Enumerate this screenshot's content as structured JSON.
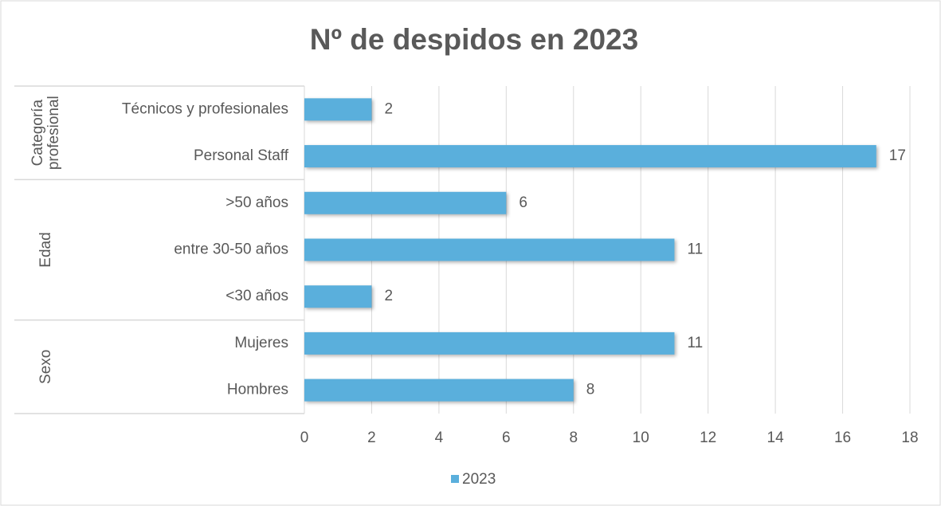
{
  "chart_data": {
    "type": "bar",
    "orientation": "horizontal",
    "title": "Nº de despidos en 2023",
    "series_name": "2023",
    "color": "#5aafdc",
    "groups": [
      {
        "name": "Categoría profesional",
        "categories": [
          "Técnicos y profesionales",
          "Personal Staff"
        ],
        "values": [
          2,
          17
        ]
      },
      {
        "name": "Edad",
        "categories": [
          ">50 años",
          "entre 30-50 años",
          "<30 años"
        ],
        "values": [
          6,
          11,
          2
        ]
      },
      {
        "name": "Sexo",
        "categories": [
          "Mujeres",
          "Hombres"
        ],
        "values": [
          11,
          8
        ]
      }
    ],
    "xlim": [
      0,
      18
    ],
    "xticks": [
      0,
      2,
      4,
      6,
      8,
      10,
      12,
      14,
      16,
      18
    ],
    "grid": true,
    "legend": "bottom"
  }
}
